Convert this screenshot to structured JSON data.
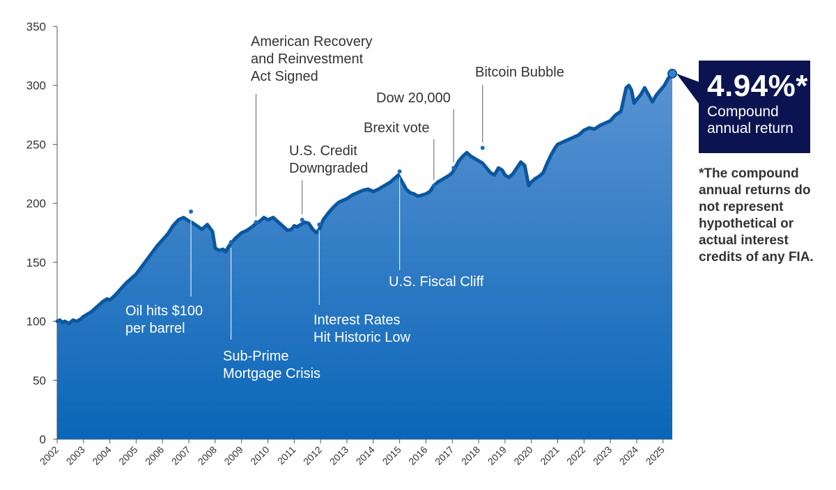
{
  "callout": {
    "value": "4.94%*",
    "label": "Compound annual return",
    "footnote": "*The compound annual returns do not represent hypothetical or actual interest credits of any FIA."
  },
  "colors": {
    "area_top": "#5a93d2",
    "area_bottom": "#0a66b8",
    "line": "#0b57a0",
    "callout_bg": "#0b1450",
    "annotation_text_light": "#ffffff",
    "annotation_text_dark": "#333333"
  },
  "chart_data": {
    "type": "area",
    "title": "",
    "xlabel": "",
    "ylabel": "",
    "ylim": [
      0,
      350
    ],
    "yticks": [
      0,
      50,
      100,
      150,
      200,
      250,
      300,
      350
    ],
    "xlim": [
      2002,
      2025.35
    ],
    "xticks": [
      "2002",
      "2003",
      "2004",
      "2005",
      "2006",
      "2007",
      "2008",
      "2009",
      "2010",
      "2011",
      "2012",
      "2013",
      "2014",
      "2015",
      "2016",
      "2017",
      "2018",
      "2019",
      "2020",
      "2021",
      "2022",
      "2023",
      "2024",
      "2025"
    ],
    "grid": false,
    "series": [
      {
        "x": [
          2002.0,
          2002.1,
          2002.2,
          2002.3,
          2002.45,
          2002.6,
          2002.75,
          2002.9,
          2003.0,
          2003.15,
          2003.3,
          2003.45,
          2003.6,
          2003.75,
          2003.9,
          2004.0,
          2004.2,
          2004.4,
          2004.6,
          2004.8,
          2005.0,
          2005.2,
          2005.4,
          2005.6,
          2005.8,
          2006.0,
          2006.2,
          2006.4,
          2006.6,
          2006.8,
          2007.0,
          2007.1,
          2007.3,
          2007.5,
          2007.7,
          2007.9,
          2008.0,
          2008.15,
          2008.3,
          2008.4,
          2008.5,
          2008.6,
          2008.75,
          2008.9,
          2009.0,
          2009.2,
          2009.4,
          2009.55,
          2009.7,
          2009.85,
          2010.0,
          2010.2,
          2010.4,
          2010.6,
          2010.75,
          2010.9,
          2011.0,
          2011.1,
          2011.25,
          2011.4,
          2011.55,
          2011.7,
          2011.85,
          2011.95,
          2012.1,
          2012.3,
          2012.5,
          2012.7,
          2012.9,
          2013.0,
          2013.2,
          2013.4,
          2013.6,
          2013.8,
          2014.0,
          2014.2,
          2014.35,
          2014.5,
          2014.65,
          2014.8,
          2014.95,
          2015.1,
          2015.25,
          2015.4,
          2015.55,
          2015.7,
          2015.85,
          2016.0,
          2016.15,
          2016.3,
          2016.45,
          2016.6,
          2016.75,
          2016.9,
          2017.0,
          2017.1,
          2017.25,
          2017.4,
          2017.55,
          2017.7,
          2017.85,
          2018.0,
          2018.15,
          2018.3,
          2018.45,
          2018.6,
          2018.75,
          2018.9,
          2019.0,
          2019.15,
          2019.3,
          2019.45,
          2019.6,
          2019.75,
          2019.9,
          2020.0,
          2020.15,
          2020.3,
          2020.45,
          2020.6,
          2020.75,
          2020.9,
          2021.0,
          2021.2,
          2021.4,
          2021.6,
          2021.8,
          2022.0,
          2022.2,
          2022.4,
          2022.6,
          2022.8,
          2023.0,
          2023.2,
          2023.4,
          2023.6,
          2023.7,
          2023.8,
          2023.9,
          2024.0,
          2024.15,
          2024.3,
          2024.45,
          2024.6,
          2024.75,
          2024.9,
          2025.05,
          2025.2,
          2025.35
        ],
        "y": [
          100,
          101,
          99,
          100,
          98,
          101,
          100,
          102,
          104,
          106,
          108,
          111,
          114,
          117,
          119,
          118,
          122,
          127,
          132,
          136,
          140,
          146,
          152,
          158,
          164,
          169,
          174,
          181,
          186,
          188,
          185,
          184,
          181,
          178,
          182,
          176,
          162,
          160,
          161,
          159,
          163,
          166,
          170,
          173,
          175,
          177,
          180,
          183,
          185,
          188,
          186,
          188,
          184,
          180,
          177,
          178,
          181,
          180,
          182,
          184,
          183,
          178,
          175,
          178,
          186,
          192,
          197,
          201,
          203,
          204,
          207,
          209,
          211,
          212,
          210,
          212,
          214,
          216,
          218,
          221,
          224,
          218,
          212,
          209,
          208,
          206,
          207,
          208,
          210,
          215,
          218,
          220,
          222,
          224,
          226,
          230,
          236,
          240,
          243,
          240,
          238,
          236,
          234,
          230,
          226,
          224,
          230,
          228,
          224,
          222,
          225,
          230,
          235,
          232,
          215,
          218,
          221,
          223,
          226,
          234,
          241,
          247,
          250,
          252,
          254,
          256,
          258,
          262,
          264,
          263,
          266,
          268,
          270,
          275,
          278,
          298,
          300,
          296,
          285,
          288,
          292,
          298,
          292,
          286,
          292,
          296,
          300,
          306,
          310
        ]
      }
    ],
    "annotations": [
      {
        "text": "Oil hits $100 per barrel",
        "x": 2007.08,
        "y": 193
      },
      {
        "text": "Sub-Prime Mortgage Crisis",
        "x": 2008.6,
        "y": 167
      },
      {
        "text": "American Recovery and Reinvestment Act Signed",
        "x": 2009.55,
        "y": 184
      },
      {
        "text": "U.S. Credit Downgraded",
        "x": 2011.3,
        "y": 186
      },
      {
        "text": "Interest Rates Hit Historic Low",
        "x": 2011.95,
        "y": 182
      },
      {
        "text": "U.S. Fiscal Cliff",
        "x": 2015.0,
        "y": 227
      },
      {
        "text": "Brexit vote",
        "x": 2016.3,
        "y": 215
      },
      {
        "text": "Dow 20,000",
        "x": 2017.05,
        "y": 230
      },
      {
        "text": "Bitcoin Bubble",
        "x": 2018.15,
        "y": 247
      }
    ]
  }
}
